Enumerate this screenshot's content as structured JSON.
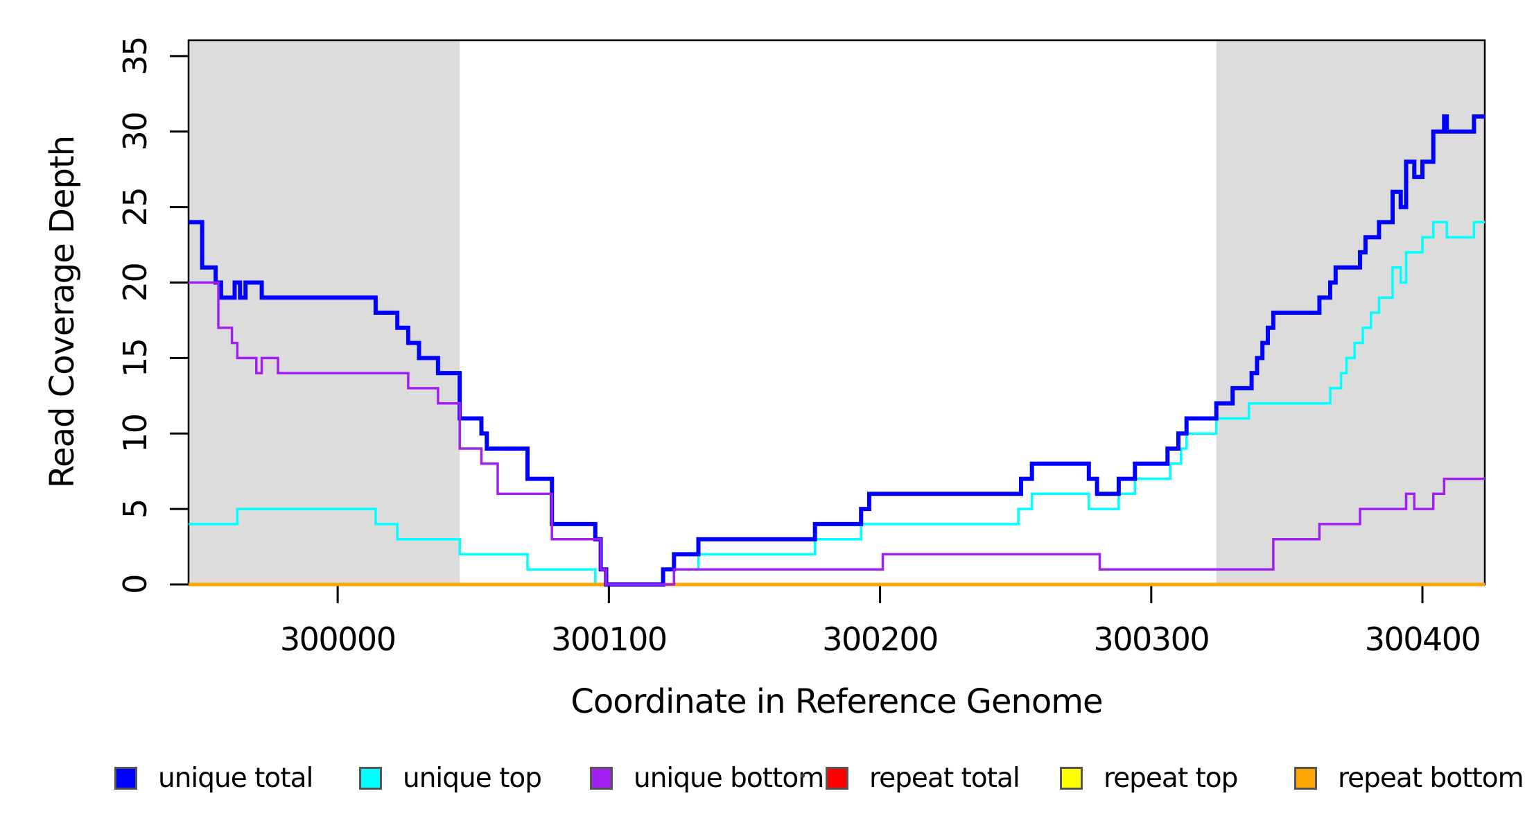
{
  "page": {
    "background": "#ffffff"
  },
  "chart_data": {
    "type": "line",
    "subtype": "step-post",
    "title": "",
    "xlabel": "Coordinate in Reference Genome",
    "ylabel": "Read Coverage Depth",
    "xlim": [
      299945,
      300423
    ],
    "ylim": [
      0,
      36.05
    ],
    "grid": false,
    "x_ticks": [
      {
        "value": 300000,
        "label": "300000"
      },
      {
        "value": 300100,
        "label": "300100"
      },
      {
        "value": 300200,
        "label": "300200"
      },
      {
        "value": 300300,
        "label": "300300"
      },
      {
        "value": 300400,
        "label": "300400"
      }
    ],
    "y_ticks": [
      {
        "value": 0,
        "label": "0"
      },
      {
        "value": 5,
        "label": "5"
      },
      {
        "value": 10,
        "label": "10"
      },
      {
        "value": 15,
        "label": "15"
      },
      {
        "value": 20,
        "label": "20"
      },
      {
        "value": 25,
        "label": "25"
      },
      {
        "value": 30,
        "label": "30"
      },
      {
        "value": 35,
        "label": "35"
      }
    ],
    "shade_color": "#dcdcdc",
    "shaded_regions": [
      {
        "name": "left-flank",
        "start": 299945,
        "end": 300045
      },
      {
        "name": "right-flank",
        "start": 300324,
        "end": 300423
      }
    ],
    "series": [
      {
        "name": "unique total",
        "color": "#0000ff",
        "width": 6,
        "points": [
          [
            299945,
            24
          ],
          [
            299950,
            21
          ],
          [
            299955,
            20
          ],
          [
            299957,
            19
          ],
          [
            299962,
            20
          ],
          [
            299964,
            19
          ],
          [
            299966,
            20
          ],
          [
            299972,
            19
          ],
          [
            300014,
            18
          ],
          [
            300022,
            17
          ],
          [
            300026,
            16
          ],
          [
            300030,
            15
          ],
          [
            300037,
            14
          ],
          [
            300045,
            11
          ],
          [
            300053,
            10
          ],
          [
            300055,
            9
          ],
          [
            300070,
            7
          ],
          [
            300079,
            4
          ],
          [
            300095,
            3
          ],
          [
            300097,
            1
          ],
          [
            300099,
            0
          ],
          [
            300120,
            1
          ],
          [
            300124,
            2
          ],
          [
            300133,
            3
          ],
          [
            300176,
            4
          ],
          [
            300193,
            5
          ],
          [
            300196,
            6
          ],
          [
            300252,
            7
          ],
          [
            300256,
            8
          ],
          [
            300277,
            7
          ],
          [
            300280,
            6
          ],
          [
            300288,
            7
          ],
          [
            300294,
            8
          ],
          [
            300306,
            9
          ],
          [
            300310,
            10
          ],
          [
            300313,
            11
          ],
          [
            300324,
            12
          ],
          [
            300330,
            13
          ],
          [
            300337,
            14
          ],
          [
            300339,
            15
          ],
          [
            300341,
            16
          ],
          [
            300343,
            17
          ],
          [
            300345,
            18
          ],
          [
            300362,
            19
          ],
          [
            300366,
            20
          ],
          [
            300368,
            21
          ],
          [
            300377,
            22
          ],
          [
            300379,
            23
          ],
          [
            300384,
            24
          ],
          [
            300389,
            26
          ],
          [
            300392,
            25
          ],
          [
            300394,
            28
          ],
          [
            300397,
            27
          ],
          [
            300400,
            28
          ],
          [
            300404,
            30
          ],
          [
            300408,
            31
          ],
          [
            300409,
            30
          ],
          [
            300419,
            31
          ]
        ]
      },
      {
        "name": "unique top",
        "color": "#00ffff",
        "width": 3.5,
        "points": [
          [
            299945,
            4
          ],
          [
            299963,
            5
          ],
          [
            300014,
            4
          ],
          [
            300022,
            3
          ],
          [
            300045,
            2
          ],
          [
            300070,
            1
          ],
          [
            300095,
            0
          ],
          [
            300120,
            1
          ],
          [
            300133,
            2
          ],
          [
            300176,
            3
          ],
          [
            300193,
            4
          ],
          [
            300251,
            5
          ],
          [
            300256,
            6
          ],
          [
            300277,
            5
          ],
          [
            300288,
            6
          ],
          [
            300294,
            7
          ],
          [
            300307,
            8
          ],
          [
            300311,
            9
          ],
          [
            300313,
            10
          ],
          [
            300324,
            11
          ],
          [
            300336,
            12
          ],
          [
            300366,
            13
          ],
          [
            300370,
            14
          ],
          [
            300372,
            15
          ],
          [
            300375,
            16
          ],
          [
            300378,
            17
          ],
          [
            300381,
            18
          ],
          [
            300384,
            19
          ],
          [
            300389,
            21
          ],
          [
            300392,
            20
          ],
          [
            300394,
            22
          ],
          [
            300400,
            23
          ],
          [
            300404,
            24
          ],
          [
            300409,
            23
          ],
          [
            300419,
            24
          ]
        ]
      },
      {
        "name": "unique bottom",
        "color": "#a020f0",
        "width": 3.5,
        "points": [
          [
            299945,
            20
          ],
          [
            299956,
            17
          ],
          [
            299961,
            16
          ],
          [
            299963,
            15
          ],
          [
            299970,
            14
          ],
          [
            299972,
            15
          ],
          [
            299978,
            14
          ],
          [
            300026,
            13
          ],
          [
            300037,
            12
          ],
          [
            300045,
            9
          ],
          [
            300053,
            8
          ],
          [
            300059,
            6
          ],
          [
            300079,
            3
          ],
          [
            300097,
            1
          ],
          [
            300099,
            0
          ],
          [
            300124,
            1
          ],
          [
            300201,
            2
          ],
          [
            300281,
            1
          ],
          [
            300345,
            3
          ],
          [
            300362,
            4
          ],
          [
            300377,
            5
          ],
          [
            300394,
            6
          ],
          [
            300397,
            5
          ],
          [
            300404,
            6
          ],
          [
            300408,
            7
          ]
        ]
      },
      {
        "name": "repeat total",
        "color": "#ff0000",
        "width": 3.5,
        "points": [
          [
            299945,
            0
          ]
        ]
      },
      {
        "name": "repeat top",
        "color": "#ffff00",
        "width": 3.5,
        "points": [
          [
            299945,
            0
          ]
        ]
      },
      {
        "name": "repeat bottom",
        "color": "#ffa500",
        "width": 5,
        "points": [
          [
            299945,
            0
          ]
        ]
      }
    ],
    "draw_order": [
      3,
      4,
      1,
      5,
      0,
      2
    ],
    "legend": {
      "position": "bottom",
      "items": [
        {
          "label": "unique total",
          "color": "#0000ff"
        },
        {
          "label": "unique top",
          "color": "#00ffff"
        },
        {
          "label": "unique bottom",
          "color": "#a020f0"
        },
        {
          "label": "repeat total",
          "color": "#ff0000"
        },
        {
          "label": "repeat top",
          "color": "#ffff00"
        },
        {
          "label": "repeat bottom",
          "color": "#ffa500"
        }
      ]
    }
  },
  "annotations": {
    "stray_dot": {
      "color": "#3f3f3f"
    }
  }
}
